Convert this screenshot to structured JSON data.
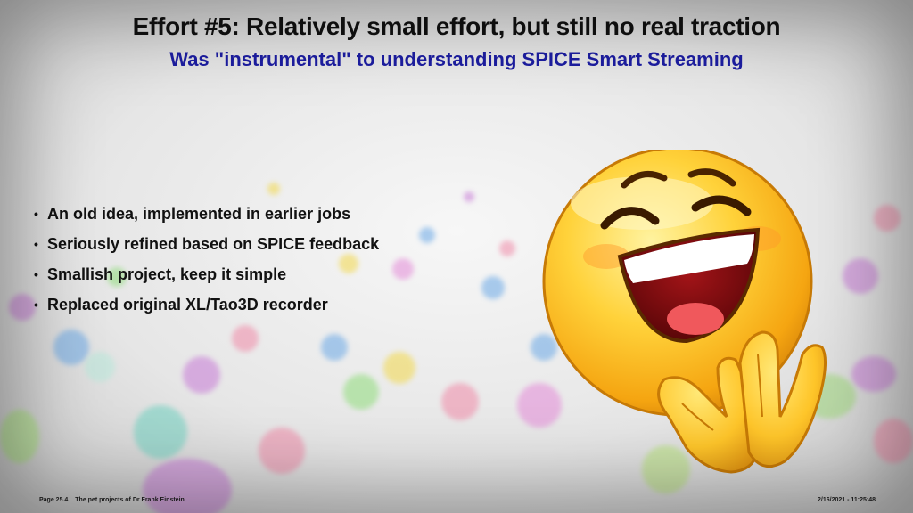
{
  "slide": {
    "title": "Effort #5: Relatively small effort, but still no real traction",
    "subtitle": "Was \"instrumental\" to understanding SPICE Smart Streaming",
    "bullets": [
      "An old idea, implemented in earlier jobs",
      "Seriously refined based on SPICE feedback",
      "Smallish project, keep it simple",
      "Replaced original XL/Tao3D recorder"
    ],
    "bullet_glyph": "•",
    "illustration": "laughing-emoji-icon"
  },
  "footer": {
    "page": "Page 25.4",
    "caption": "The pet projects of Dr Frank Einstein",
    "datetime": "2/16/2021 - 11:25:48"
  },
  "colors": {
    "title": "#111111",
    "subtitle": "#1d1ea3",
    "emoji_face": "#f5b91a"
  }
}
